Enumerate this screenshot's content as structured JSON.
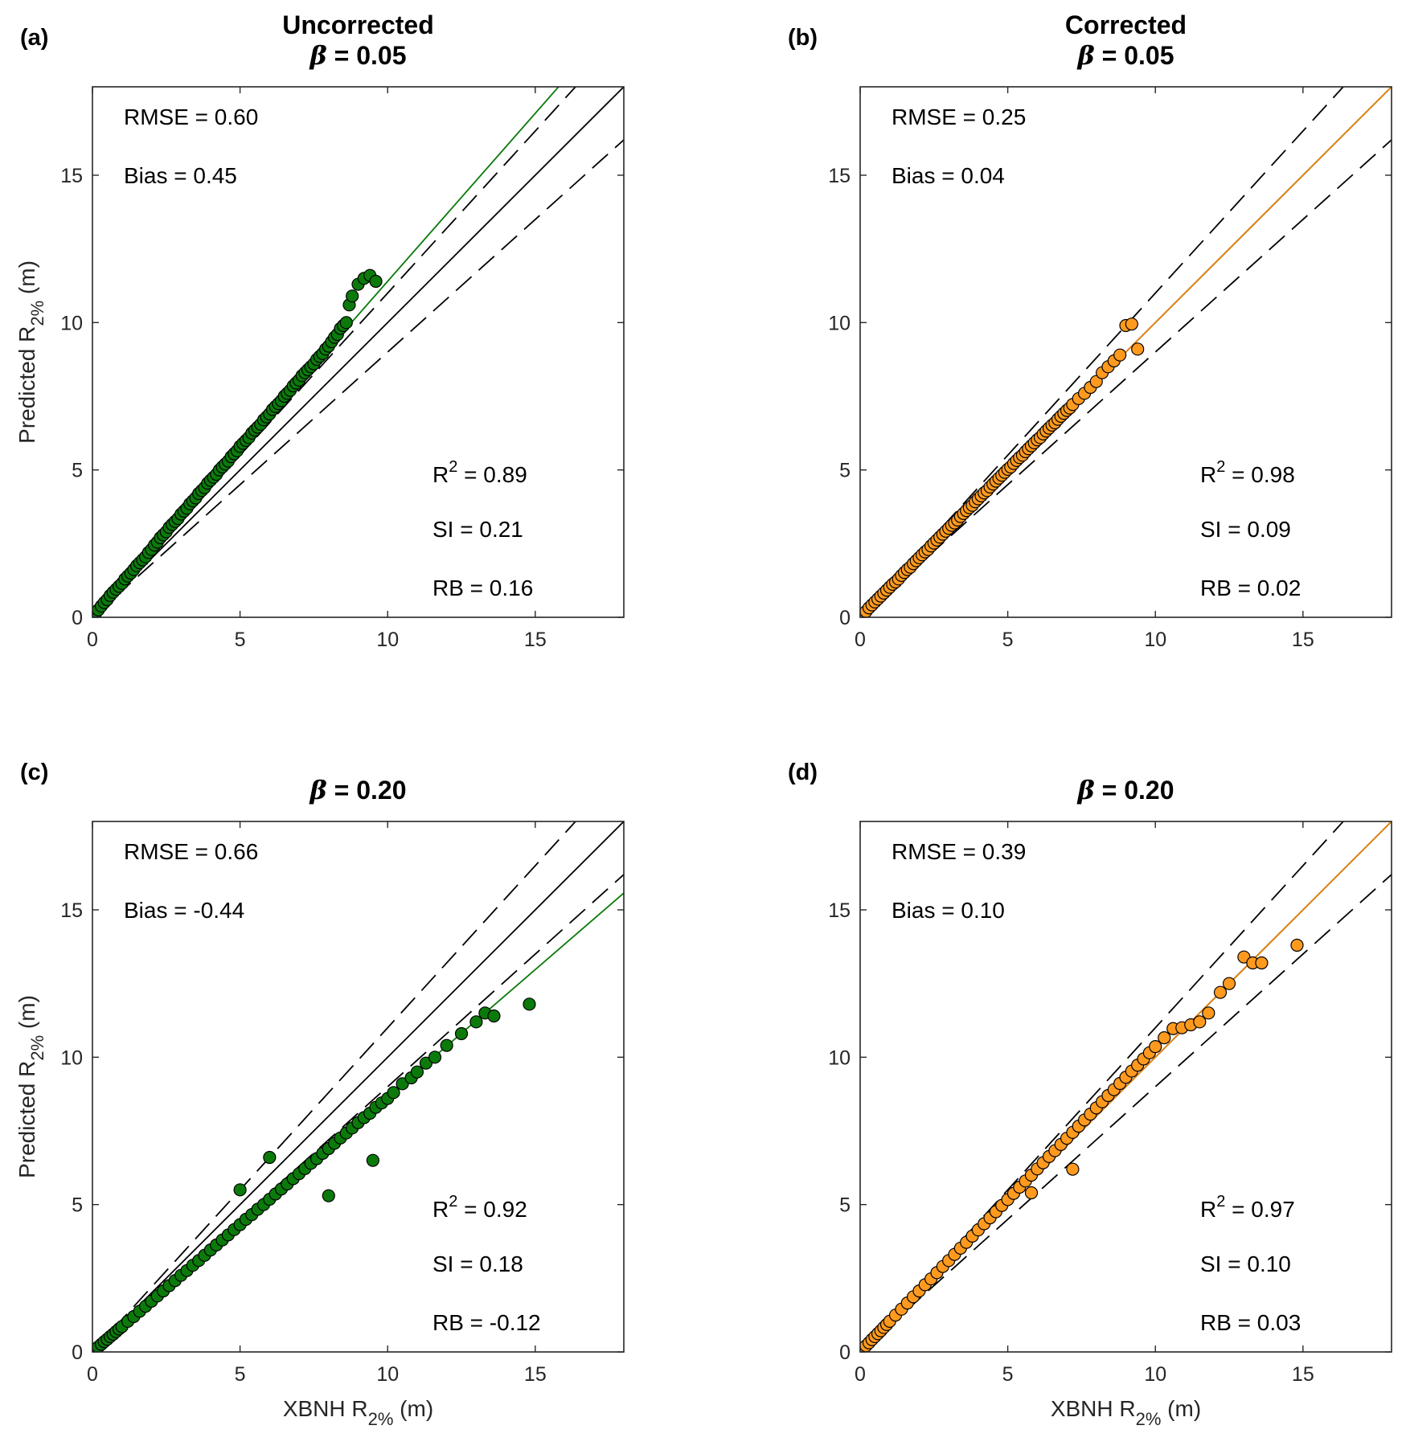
{
  "colors": {
    "uncorrected_marker": "#0b7a0b",
    "corrected_marker": "#ff9a1f",
    "uncorrected_fit": "#0a7a0a",
    "corrected_fit": "#e8870f"
  },
  "chart_data": [
    {
      "type": "scatter",
      "panel": "(a)",
      "title_line1": "Uncorrected",
      "beta_symbol": "β",
      "beta_text": " = 0.05",
      "xlabel": "",
      "ylabel_main": "Predicted R",
      "ylabel_sub": "2%",
      "ylabel_unit": " (m)",
      "xlim": [
        0,
        18
      ],
      "ylim": [
        0,
        18
      ],
      "xticks": [
        0,
        5,
        10,
        15
      ],
      "yticks": [
        0,
        5,
        10,
        15
      ],
      "marker": "uncorrected",
      "fit_slope": 1.14,
      "stats": {
        "rmse": "RMSE = 0.60",
        "bias": "Bias = 0.45",
        "r2_prefix": "R",
        "r2_sup": "2",
        "r2_value": " = 0.89",
        "si": "SI = 0.21",
        "rb": "RB = 0.16"
      },
      "points_x": [
        0.05,
        0.1,
        0.2,
        0.3,
        0.4,
        0.5,
        0.6,
        0.7,
        0.8,
        0.9,
        1.0,
        1.1,
        1.2,
        1.3,
        1.4,
        1.5,
        1.6,
        1.7,
        1.8,
        1.9,
        2.0,
        2.1,
        2.2,
        2.3,
        2.4,
        2.5,
        2.6,
        2.7,
        2.8,
        2.9,
        3.0,
        3.1,
        3.2,
        3.3,
        3.4,
        3.5,
        3.6,
        3.7,
        3.8,
        3.9,
        4.0,
        4.1,
        4.2,
        4.3,
        4.4,
        4.5,
        4.6,
        4.7,
        4.8,
        4.9,
        5.0,
        5.1,
        5.2,
        5.3,
        5.4,
        5.5,
        5.6,
        5.7,
        5.8,
        5.9,
        6.0,
        6.1,
        6.2,
        6.3,
        6.4,
        6.5,
        6.6,
        6.7,
        6.8,
        6.9,
        7.0,
        7.1,
        7.2,
        7.3,
        7.4,
        7.5,
        7.6,
        7.7,
        7.8,
        7.9,
        8.0,
        8.1,
        8.2,
        8.3,
        8.4,
        8.5,
        8.6,
        8.7,
        8.8,
        9.0,
        9.2,
        9.4,
        9.6
      ],
      "points_y": [
        0.05,
        0.12,
        0.25,
        0.38,
        0.5,
        0.6,
        0.74,
        0.85,
        0.95,
        1.05,
        1.15,
        1.3,
        1.4,
        1.5,
        1.62,
        1.75,
        1.85,
        1.95,
        2.05,
        2.2,
        2.3,
        2.45,
        2.55,
        2.7,
        2.8,
        2.9,
        3.05,
        3.15,
        3.25,
        3.35,
        3.5,
        3.6,
        3.7,
        3.85,
        3.95,
        4.05,
        4.2,
        4.3,
        4.4,
        4.55,
        4.65,
        4.75,
        4.85,
        5.0,
        5.1,
        5.2,
        5.3,
        5.45,
        5.55,
        5.65,
        5.8,
        5.9,
        6.0,
        6.1,
        6.25,
        6.35,
        6.45,
        6.55,
        6.7,
        6.8,
        6.9,
        7.05,
        7.15,
        7.25,
        7.35,
        7.5,
        7.6,
        7.7,
        7.85,
        7.95,
        8.05,
        8.2,
        8.3,
        8.4,
        8.5,
        8.6,
        8.75,
        8.85,
        8.95,
        9.1,
        9.2,
        9.35,
        9.5,
        9.6,
        9.8,
        9.9,
        10.0,
        10.6,
        10.9,
        11.3,
        11.5,
        11.6,
        11.4
      ]
    },
    {
      "type": "scatter",
      "panel": "(b)",
      "title_line1": "Corrected",
      "beta_symbol": "β",
      "beta_text": " = 0.05",
      "xlabel": "",
      "ylabel_main": "",
      "ylabel_sub": "",
      "ylabel_unit": "",
      "xlim": [
        0,
        18
      ],
      "ylim": [
        0,
        18
      ],
      "xticks": [
        0,
        5,
        10,
        15
      ],
      "yticks": [
        0,
        5,
        10,
        15
      ],
      "marker": "corrected",
      "fit_slope": 1.0,
      "stats": {
        "rmse": "RMSE = 0.25",
        "bias": "Bias = 0.04",
        "r2_prefix": "R",
        "r2_sup": "2",
        "r2_value": " = 0.98",
        "si": "SI = 0.09",
        "rb": "RB = 0.02"
      },
      "points_x": [
        0.05,
        0.1,
        0.2,
        0.3,
        0.4,
        0.5,
        0.6,
        0.7,
        0.8,
        0.9,
        1.0,
        1.1,
        1.2,
        1.3,
        1.4,
        1.5,
        1.6,
        1.7,
        1.8,
        1.9,
        2.0,
        2.1,
        2.2,
        2.3,
        2.4,
        2.5,
        2.6,
        2.7,
        2.8,
        2.9,
        3.0,
        3.1,
        3.2,
        3.3,
        3.4,
        3.5,
        3.6,
        3.7,
        3.8,
        3.9,
        4.0,
        4.1,
        4.2,
        4.3,
        4.4,
        4.5,
        4.6,
        4.7,
        4.8,
        4.9,
        5.0,
        5.1,
        5.2,
        5.3,
        5.4,
        5.5,
        5.6,
        5.7,
        5.8,
        5.9,
        6.0,
        6.1,
        6.2,
        6.3,
        6.4,
        6.5,
        6.6,
        6.7,
        6.8,
        6.9,
        7.0,
        7.1,
        7.2,
        7.4,
        7.6,
        7.8,
        8.0,
        8.2,
        8.4,
        8.6,
        8.8,
        9.0,
        9.2,
        9.4
      ],
      "points_y": [
        0.05,
        0.1,
        0.2,
        0.32,
        0.42,
        0.52,
        0.62,
        0.72,
        0.82,
        0.92,
        1.02,
        1.12,
        1.2,
        1.3,
        1.42,
        1.52,
        1.62,
        1.7,
        1.82,
        1.92,
        2.02,
        2.12,
        2.22,
        2.3,
        2.42,
        2.52,
        2.62,
        2.72,
        2.82,
        2.92,
        3.02,
        3.12,
        3.2,
        3.3,
        3.42,
        3.52,
        3.62,
        3.72,
        3.8,
        3.92,
        4.02,
        4.12,
        4.22,
        4.3,
        4.42,
        4.52,
        4.62,
        4.72,
        4.82,
        4.92,
        5.02,
        5.1,
        5.22,
        5.32,
        5.42,
        5.5,
        5.62,
        5.72,
        5.82,
        5.92,
        6.02,
        6.1,
        6.22,
        6.32,
        6.42,
        6.52,
        6.6,
        6.72,
        6.82,
        6.92,
        7.02,
        7.1,
        7.22,
        7.42,
        7.6,
        7.8,
        8.0,
        8.3,
        8.5,
        8.7,
        8.9,
        9.9,
        9.95,
        9.1
      ]
    },
    {
      "type": "scatter",
      "panel": "(c)",
      "title_line1": "",
      "beta_symbol": "β",
      "beta_text": " = 0.20",
      "xlabel_main": "",
      "xlabel_sub": "",
      "xlabel_unit": "",
      "ylabel_main": "Predicted R",
      "ylabel_sub": "2%",
      "ylabel_unit": " (m)",
      "xlim": [
        0,
        18
      ],
      "ylim": [
        0,
        18
      ],
      "xticks": [
        0,
        5,
        10,
        15
      ],
      "yticks": [
        0,
        5,
        10,
        15
      ],
      "marker": "uncorrected",
      "fit_slope": 0.865,
      "stats": {
        "rmse": "RMSE = 0.66",
        "bias": "Bias = -0.44",
        "r2_prefix": "R",
        "r2_sup": "2",
        "r2_value": " = 0.92",
        "si": "SI = 0.18",
        "rb": "RB = -0.12"
      },
      "points_x": [
        0.05,
        0.1,
        0.2,
        0.3,
        0.4,
        0.5,
        0.6,
        0.7,
        0.8,
        0.9,
        1.0,
        1.2,
        1.4,
        1.6,
        1.8,
        2.0,
        2.2,
        2.4,
        2.6,
        2.8,
        3.0,
        3.2,
        3.4,
        3.6,
        3.8,
        4.0,
        4.2,
        4.4,
        4.6,
        4.8,
        5.0,
        5.2,
        5.4,
        5.6,
        5.8,
        6.0,
        6.2,
        6.4,
        6.6,
        6.8,
        7.0,
        7.2,
        7.4,
        7.6,
        7.8,
        8.0,
        8.2,
        8.4,
        8.6,
        8.8,
        9.0,
        9.2,
        9.4,
        9.6,
        9.8,
        10.0,
        10.2,
        10.5,
        10.8,
        11.0,
        11.3,
        11.6,
        12.0,
        12.5,
        13.0,
        13.3,
        13.6,
        14.8,
        9.5,
        8.0,
        6.0,
        5.0
      ],
      "points_y": [
        0.04,
        0.09,
        0.17,
        0.26,
        0.35,
        0.43,
        0.52,
        0.6,
        0.69,
        0.78,
        0.86,
        1.04,
        1.2,
        1.38,
        1.55,
        1.72,
        1.9,
        2.07,
        2.25,
        2.42,
        2.6,
        2.76,
        2.94,
        3.1,
        3.28,
        3.46,
        3.63,
        3.8,
        3.97,
        4.15,
        4.32,
        4.5,
        4.66,
        4.84,
        5.0,
        5.18,
        5.36,
        5.53,
        5.7,
        5.88,
        6.05,
        6.22,
        6.4,
        6.56,
        6.74,
        6.9,
        7.08,
        7.26,
        7.43,
        7.6,
        7.78,
        7.95,
        8.1,
        8.3,
        8.45,
        8.6,
        8.8,
        9.1,
        9.3,
        9.5,
        9.8,
        10.0,
        10.4,
        10.8,
        11.2,
        11.5,
        11.4,
        11.8,
        6.5,
        5.3,
        6.6,
        5.5
      ]
    },
    {
      "type": "scatter",
      "panel": "(d)",
      "title_line1": "",
      "beta_symbol": "β",
      "beta_text": " = 0.20",
      "ylabel_main": "",
      "ylabel_sub": "",
      "ylabel_unit": "",
      "xlim": [
        0,
        18
      ],
      "ylim": [
        0,
        18
      ],
      "xticks": [
        0,
        5,
        10,
        15
      ],
      "yticks": [
        0,
        5,
        10,
        15
      ],
      "marker": "corrected",
      "fit_slope": 1.0,
      "stats": {
        "rmse": "RMSE = 0.39",
        "bias": "Bias = 0.10",
        "r2_prefix": "R",
        "r2_sup": "2",
        "r2_value": " = 0.97",
        "si": "SI = 0.10",
        "rb": "RB = 0.03"
      },
      "points_x": [
        0.05,
        0.1,
        0.2,
        0.3,
        0.4,
        0.5,
        0.6,
        0.7,
        0.8,
        0.9,
        1.0,
        1.2,
        1.4,
        1.6,
        1.8,
        2.0,
        2.2,
        2.4,
        2.6,
        2.8,
        3.0,
        3.2,
        3.4,
        3.6,
        3.8,
        4.0,
        4.2,
        4.4,
        4.6,
        4.8,
        5.0,
        5.2,
        5.4,
        5.6,
        5.8,
        6.0,
        6.2,
        6.4,
        6.6,
        6.8,
        7.0,
        7.2,
        7.4,
        7.6,
        7.8,
        8.0,
        8.2,
        8.4,
        8.6,
        8.8,
        9.0,
        9.2,
        9.4,
        9.6,
        9.8,
        10.0,
        10.3,
        10.6,
        10.9,
        11.2,
        11.5,
        11.8,
        12.2,
        12.5,
        13.0,
        13.3,
        13.6,
        14.8,
        7.2,
        5.8
      ],
      "points_y": [
        0.05,
        0.11,
        0.21,
        0.31,
        0.42,
        0.52,
        0.62,
        0.72,
        0.83,
        0.93,
        1.04,
        1.25,
        1.45,
        1.66,
        1.87,
        2.07,
        2.28,
        2.48,
        2.69,
        2.9,
        3.1,
        3.31,
        3.52,
        3.72,
        3.93,
        4.14,
        4.35,
        4.55,
        4.76,
        4.97,
        5.17,
        5.38,
        5.59,
        5.8,
        6.0,
        6.21,
        6.42,
        6.63,
        6.83,
        7.04,
        7.25,
        7.45,
        7.66,
        7.87,
        8.07,
        8.28,
        8.49,
        8.7,
        8.9,
        9.11,
        9.32,
        9.53,
        9.73,
        9.94,
        10.15,
        10.36,
        10.66,
        10.97,
        11.0,
        11.1,
        11.2,
        11.5,
        12.2,
        12.5,
        13.4,
        13.2,
        13.2,
        13.8,
        6.2,
        5.4
      ]
    }
  ],
  "bottom_axis_label": {
    "main": "XBNH R",
    "sub": "2%",
    "unit": " (m)"
  }
}
